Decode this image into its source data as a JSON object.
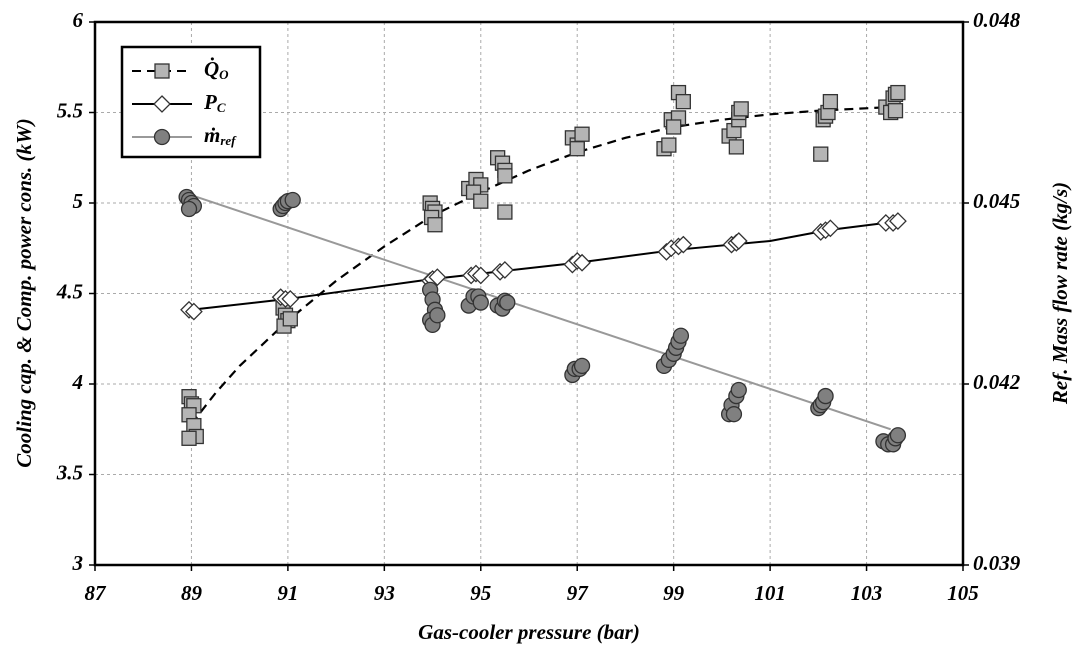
{
  "chart_data": {
    "type": "scatter",
    "xlabel": "Gas-cooler pressure (bar)",
    "ylabel": "Cooling cap. & Comp. power cons. (kW)",
    "y2label": "Ref. Mass flow rate (kg/s)",
    "xlim": [
      87,
      105
    ],
    "xticks": [
      87,
      89,
      91,
      93,
      95,
      97,
      99,
      101,
      103,
      105
    ],
    "ylim": [
      3,
      6
    ],
    "yticks": [
      3,
      3.5,
      4,
      4.5,
      5,
      5.5,
      6
    ],
    "y2lim": [
      0.039,
      0.048
    ],
    "y2ticks": [
      0.039,
      0.042,
      0.045,
      0.048
    ],
    "grid": true,
    "legend": "upper left",
    "series": [
      {
        "name": "Q̇",
        "name_sub": "O",
        "marker": "square",
        "color": "#b5b5b5",
        "line_color": "#000000",
        "dash": true,
        "x": [
          88.95,
          89.0,
          89.05,
          88.95,
          89.05,
          89.1,
          88.95,
          90.9,
          90.95,
          91.0,
          90.92,
          91.05,
          93.95,
          94.0,
          94.05,
          93.98,
          94.05,
          94.75,
          94.9,
          95.0,
          94.85,
          95.0,
          95.35,
          95.45,
          95.5,
          95.5,
          95.5,
          96.9,
          97.0,
          97.0,
          97.1,
          98.8,
          98.9,
          98.95,
          99.1,
          99.0,
          99.1,
          99.2,
          100.15,
          100.25,
          100.3,
          100.35,
          100.35,
          100.4,
          102.05,
          102.1,
          102.15,
          102.2,
          102.25,
          103.4,
          103.5,
          103.55,
          103.6,
          103.65,
          103.6
        ],
        "values": [
          3.93,
          3.89,
          3.88,
          3.83,
          3.77,
          3.71,
          3.7,
          4.42,
          4.38,
          4.35,
          4.32,
          4.36,
          5.0,
          4.97,
          4.95,
          4.92,
          4.88,
          5.08,
          5.13,
          5.1,
          5.06,
          5.01,
          5.25,
          5.22,
          5.18,
          5.15,
          4.95,
          5.36,
          5.32,
          5.3,
          5.38,
          5.3,
          5.32,
          5.46,
          5.47,
          5.42,
          5.61,
          5.56,
          5.37,
          5.4,
          5.31,
          5.46,
          5.5,
          5.52,
          5.27,
          5.46,
          5.48,
          5.5,
          5.56,
          5.53,
          5.5,
          5.58,
          5.6,
          5.61,
          5.51
        ],
        "fit": {
          "x": [
            89,
            89.5,
            90,
            91,
            92,
            93,
            94,
            95,
            96,
            97,
            98,
            99,
            100,
            101,
            102,
            103.5
          ],
          "values": [
            3.78,
            3.95,
            4.1,
            4.35,
            4.57,
            4.76,
            4.93,
            5.06,
            5.18,
            5.28,
            5.36,
            5.42,
            5.46,
            5.49,
            5.51,
            5.53
          ]
        }
      },
      {
        "name": "P",
        "name_sub": "C",
        "marker": "diamond",
        "color": "#ffffff",
        "line_color": "#000000",
        "dash": false,
        "x": [
          88.95,
          89.05,
          90.85,
          90.95,
          91.05,
          93.95,
          94.0,
          94.1,
          94.8,
          94.9,
          95.0,
          95.4,
          95.5,
          96.9,
          97.0,
          97.1,
          98.85,
          98.95,
          99.1,
          99.2,
          100.2,
          100.3,
          100.35,
          102.05,
          102.15,
          102.25,
          103.4,
          103.55,
          103.65
        ],
        "values": [
          4.41,
          4.4,
          4.48,
          4.47,
          4.47,
          4.57,
          4.58,
          4.59,
          4.6,
          4.61,
          4.6,
          4.62,
          4.63,
          4.66,
          4.68,
          4.67,
          4.73,
          4.75,
          4.76,
          4.77,
          4.77,
          4.78,
          4.79,
          4.84,
          4.85,
          4.86,
          4.89,
          4.89,
          4.9
        ],
        "fit": {
          "x": [
            89,
            91,
            94,
            95,
            97,
            99,
            101,
            102.2,
            103.4
          ],
          "values": [
            4.41,
            4.47,
            4.58,
            4.61,
            4.67,
            4.74,
            4.79,
            4.85,
            4.89
          ]
        }
      },
      {
        "name": "ṁ",
        "name_sub": "ref",
        "marker": "circle",
        "color": "#808080",
        "line_color": "#999999",
        "dash": false,
        "axis": "y2",
        "x": [
          88.9,
          88.95,
          89.0,
          89.05,
          88.95,
          90.85,
          90.9,
          90.95,
          91.0,
          91.1,
          93.95,
          94.0,
          94.05,
          93.95,
          94.0,
          94.1,
          94.75,
          94.85,
          94.95,
          95.0,
          95.35,
          95.45,
          95.5,
          95.55,
          96.9,
          96.95,
          97.05,
          97.1,
          98.8,
          98.9,
          99.0,
          99.05,
          99.1,
          99.15,
          100.15,
          100.2,
          100.25,
          100.3,
          100.35,
          102.0,
          102.05,
          102.1,
          102.15,
          103.35,
          103.45,
          103.55,
          103.6,
          103.65
        ],
        "values": [
          0.0451,
          0.04505,
          0.045,
          0.04495,
          0.0449,
          0.0449,
          0.04495,
          0.045,
          0.04503,
          0.04505,
          0.04356,
          0.0434,
          0.04323,
          0.04306,
          0.04298,
          0.04314,
          0.0433,
          0.04345,
          0.04345,
          0.04335,
          0.0433,
          0.04325,
          0.04338,
          0.04335,
          0.04215,
          0.04225,
          0.04225,
          0.0423,
          0.0423,
          0.0424,
          0.0425,
          0.0426,
          0.0427,
          0.0428,
          0.0415,
          0.04165,
          0.0415,
          0.0418,
          0.0419,
          0.0416,
          0.04165,
          0.0417,
          0.0418,
          0.04105,
          0.041,
          0.041,
          0.0411,
          0.04115
        ],
        "fit": {
          "x": [
            89,
            103.5
          ],
          "values": [
            0.04513,
            0.04125
          ]
        }
      }
    ]
  }
}
